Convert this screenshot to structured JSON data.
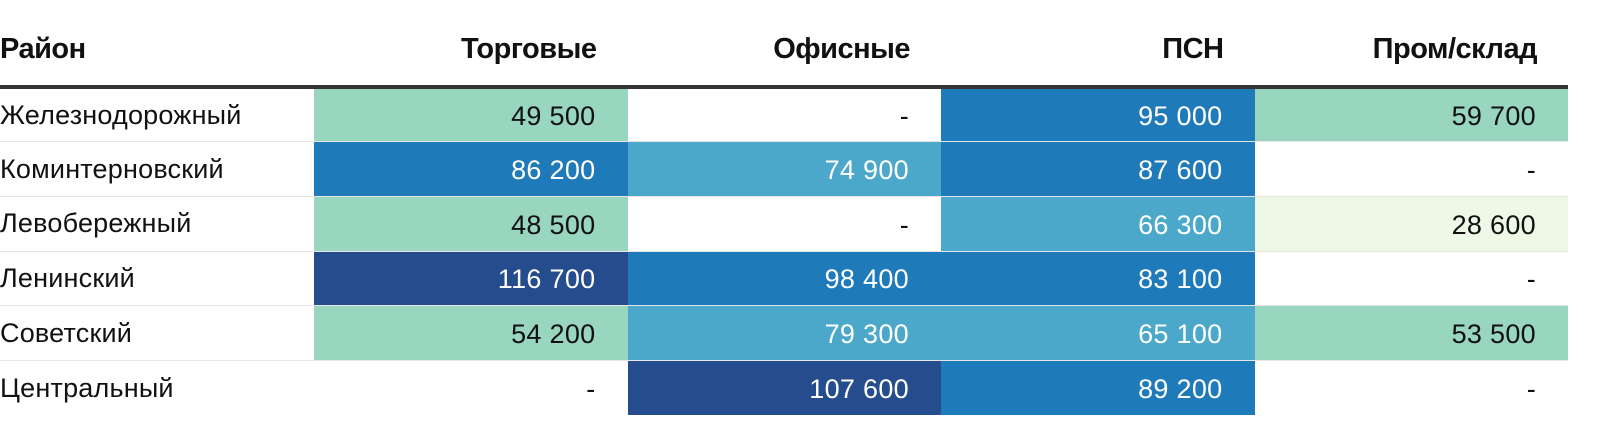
{
  "chart_data": {
    "type": "table",
    "title": "",
    "columns": [
      "Район",
      "Торговые",
      "Офисные",
      "ПСН",
      "Пром/склад"
    ],
    "rows": [
      {
        "district": "Железнодорожный",
        "values": [
          "49 500",
          "-",
          "95 000",
          "59 700"
        ]
      },
      {
        "district": "Коминтерновский",
        "values": [
          "86 200",
          "74 900",
          "87 600",
          "-"
        ]
      },
      {
        "district": "Левобережный",
        "values": [
          "48 500",
          "-",
          "66 300",
          "28 600"
        ]
      },
      {
        "district": "Ленинский",
        "values": [
          "116 700",
          "98 400",
          "83 100",
          "-"
        ]
      },
      {
        "district": "Советский",
        "values": [
          "54 200",
          "79 300",
          "65 100",
          "53 500"
        ]
      },
      {
        "district": "Центральный",
        "values": [
          "-",
          "107 600",
          "89 200",
          "-"
        ]
      }
    ],
    "color_scale": {
      "missing": "#ffffff",
      "stops": [
        {
          "min": 0,
          "color": "#eef8e6",
          "text": "#111111"
        },
        {
          "min": 40000,
          "color": "#98d6c0",
          "text": "#111111"
        },
        {
          "min": 60000,
          "color": "#4ba8cb",
          "text": "#ffffff"
        },
        {
          "min": 80000,
          "color": "#1f7ab9",
          "text": "#ffffff"
        },
        {
          "min": 100000,
          "color": "#254c8d",
          "text": "#ffffff"
        }
      ]
    }
  }
}
